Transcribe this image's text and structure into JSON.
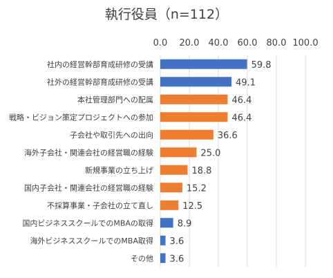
{
  "chart_data": {
    "type": "bar",
    "orientation": "horizontal",
    "title": "執行役員（n=112）",
    "xlim": [
      0,
      100
    ],
    "xticks": [
      "0.0",
      "20.0",
      "40.0",
      "60.0",
      "80.0",
      "100.0"
    ],
    "grid": true,
    "categories": [
      "社内の経営幹部育成研修の受講",
      "社外の経営幹部育成研修の受講",
      "本社管理部門への配属",
      "戦略・ビジョン策定プロジェクトへの参加",
      "子会社や取引先への出向",
      "海外子会社・関連会社の経営職の経験",
      "新規事業の立ち上げ",
      "国内子会社・関連会社の経営職の経験",
      "不採算事業・子会社の立て直し",
      "国内ビジネススクールでのMBAの取得",
      "海外ビジネススクールでのMBA取得",
      "その他"
    ],
    "values": [
      59.8,
      49.1,
      46.4,
      46.4,
      36.6,
      25.0,
      18.8,
      15.2,
      12.5,
      8.9,
      3.6,
      3.6
    ],
    "value_labels": [
      "59.8",
      "49.1",
      "46.4",
      "46.4",
      "36.6",
      "25.0",
      "18.8",
      "15.2",
      "12.5",
      "8.9",
      "3.6",
      "3.6"
    ],
    "bar_colors": [
      "#4472C4",
      "#4472C4",
      "#ED7D31",
      "#ED7D31",
      "#ED7D31",
      "#ED7D31",
      "#ED7D31",
      "#ED7D31",
      "#ED7D31",
      "#4472C4",
      "#4472C4",
      "#4472C4"
    ]
  },
  "colors": {
    "blue": "#4472C4",
    "orange": "#ED7D31",
    "grid": "#D9D9D9",
    "text": "#404040"
  }
}
